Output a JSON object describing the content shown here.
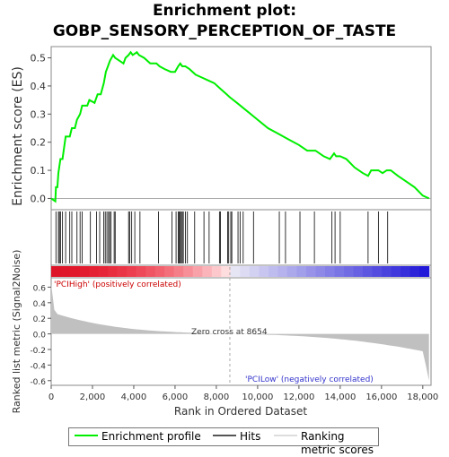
{
  "title_line1": "Enrichment plot:",
  "title_line2": "GOBP_SENSORY_PERCEPTION_OF_TASTE",
  "colors": {
    "enrichment_line": "#00ee00",
    "hits": "#000000",
    "metric_fill": "#c0c0c0",
    "positive_label": "#cc0000",
    "negative_label": "#3333cc",
    "zero_cross_line": "#aaaaaa"
  },
  "legend": {
    "enrichment_profile": "Enrichment profile",
    "hits": "Hits",
    "ranking_metric_scores": "Ranking metric scores"
  },
  "chart_data": {
    "type": "line",
    "ylabel_top": "Enrichment score (ES)",
    "ylabel_bottom": "Ranked list metric (Signal2Noise)",
    "xlabel": "Rank in Ordered Dataset",
    "xlim": [
      0,
      18400
    ],
    "ylim_top": [
      -0.04,
      0.54
    ],
    "ylim_bottom": [
      -0.66,
      0.72
    ],
    "x_ticks": [
      "0",
      "2,000",
      "4,000",
      "6,000",
      "8,000",
      "10,000",
      "12,000",
      "14,000",
      "16,000",
      "18,000"
    ],
    "x_tick_values": [
      0,
      2000,
      4000,
      6000,
      8000,
      10000,
      12000,
      14000,
      16000,
      18000
    ],
    "y_ticks_top": [
      "0.0",
      "0.1",
      "0.2",
      "0.3",
      "0.4",
      "0.5"
    ],
    "y_tick_values_top": [
      0.0,
      0.1,
      0.2,
      0.3,
      0.4,
      0.5
    ],
    "y_ticks_bottom": [
      "-0.6",
      "-0.4",
      "-0.2",
      "0.0",
      "0.2",
      "0.4",
      "0.6"
    ],
    "y_tick_values_bottom": [
      -0.6,
      -0.4,
      -0.2,
      0.0,
      0.2,
      0.4,
      0.6
    ],
    "positive_label": "'PCIHigh' (positively correlated)",
    "negative_label": "'PCILow' (negatively correlated)",
    "zero_cross_label": "Zero cross at 8654",
    "zero_cross": 8654,
    "total_rank": 18300,
    "es_profile": {
      "x": [
        0,
        200,
        230,
        300,
        350,
        450,
        550,
        700,
        900,
        1000,
        1150,
        1250,
        1400,
        1500,
        1750,
        1850,
        2100,
        2250,
        2400,
        2550,
        2650,
        2750,
        2850,
        3000,
        3100,
        3300,
        3500,
        3600,
        3750,
        3850,
        3950,
        4150,
        4250,
        4500,
        4800,
        5100,
        5250,
        5500,
        5800,
        6000,
        6150,
        6250,
        6350,
        6500,
        6700,
        7000,
        7300,
        7600,
        7900,
        8200,
        8500,
        8654,
        9000,
        9500,
        10000,
        10500,
        11000,
        11500,
        12000,
        12400,
        12800,
        13200,
        13500,
        13700,
        13800,
        14000,
        14300,
        14700,
        15100,
        15350,
        15500,
        15650,
        15850,
        16050,
        16250,
        16450,
        16800,
        17200,
        17600,
        18000,
        18300
      ],
      "y": [
        0.0,
        -0.01,
        0.04,
        0.04,
        0.09,
        0.14,
        0.14,
        0.22,
        0.22,
        0.25,
        0.25,
        0.28,
        0.3,
        0.33,
        0.33,
        0.35,
        0.34,
        0.37,
        0.37,
        0.41,
        0.45,
        0.47,
        0.49,
        0.51,
        0.5,
        0.49,
        0.48,
        0.5,
        0.51,
        0.52,
        0.51,
        0.52,
        0.51,
        0.5,
        0.48,
        0.48,
        0.47,
        0.46,
        0.45,
        0.45,
        0.47,
        0.48,
        0.47,
        0.47,
        0.46,
        0.44,
        0.43,
        0.42,
        0.41,
        0.39,
        0.37,
        0.36,
        0.34,
        0.31,
        0.28,
        0.25,
        0.23,
        0.21,
        0.19,
        0.17,
        0.17,
        0.15,
        0.14,
        0.16,
        0.15,
        0.15,
        0.14,
        0.11,
        0.09,
        0.08,
        0.1,
        0.1,
        0.1,
        0.09,
        0.1,
        0.1,
        0.08,
        0.06,
        0.04,
        0.01,
        0.0
      ]
    },
    "hits": [
      230,
      350,
      400,
      450,
      550,
      700,
      900,
      1000,
      1250,
      1400,
      1500,
      1900,
      2200,
      2350,
      2550,
      2620,
      2700,
      2780,
      2830,
      2900,
      3050,
      3100,
      3750,
      3800,
      3900,
      4050,
      4300,
      5200,
      5850,
      6050,
      6150,
      6200,
      6250,
      6300,
      6350,
      6400,
      6500,
      6600,
      6950,
      7400,
      7650,
      8150,
      8200,
      8550,
      8600,
      8700,
      8750,
      9050,
      9150,
      9300,
      9800,
      11050,
      11350,
      12050,
      12750,
      13600,
      13750,
      14000,
      15350,
      15850,
      16300
    ]
  }
}
